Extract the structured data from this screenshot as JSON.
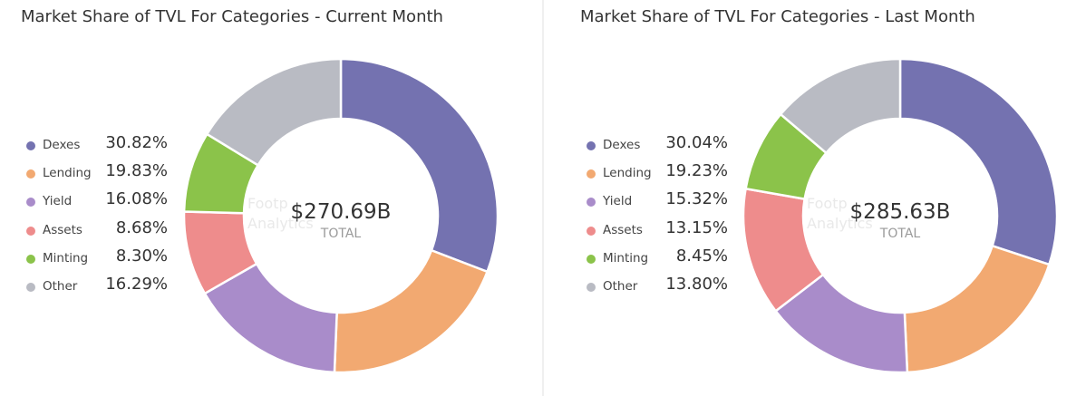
{
  "chart_data": [
    {
      "type": "pie",
      "title": "Market Share of TVL For Categories - Current Month",
      "center_value": "$270.69B",
      "center_label": "TOTAL",
      "watermark": [
        "Footp",
        "Analytics"
      ],
      "categories": [
        "Dexes",
        "Lending",
        "Yield",
        "Assets",
        "Minting",
        "Other"
      ],
      "values": [
        30.82,
        19.83,
        16.08,
        8.68,
        8.3,
        16.29
      ],
      "value_labels": [
        "30.82%",
        "19.83%",
        "16.08%",
        "8.68%",
        "8.30%",
        "16.29%"
      ],
      "colors": [
        "#7472b0",
        "#f2a971",
        "#a98cca",
        "#ee8c8c",
        "#8bc34a",
        "#b9bbc3"
      ]
    },
    {
      "type": "pie",
      "title": "Market Share of TVL For Categories - Last Month",
      "center_value": "$285.63B",
      "center_label": "TOTAL",
      "watermark": [
        "Footp",
        "Analytics"
      ],
      "categories": [
        "Dexes",
        "Lending",
        "Yield",
        "Assets",
        "Minting",
        "Other"
      ],
      "values": [
        30.04,
        19.23,
        15.32,
        13.15,
        8.45,
        13.8
      ],
      "value_labels": [
        "30.04%",
        "19.23%",
        "15.32%",
        "13.15%",
        "8.45%",
        "13.80%"
      ],
      "colors": [
        "#7472b0",
        "#f2a971",
        "#a98cca",
        "#ee8c8c",
        "#8bc34a",
        "#b9bbc3"
      ]
    }
  ]
}
